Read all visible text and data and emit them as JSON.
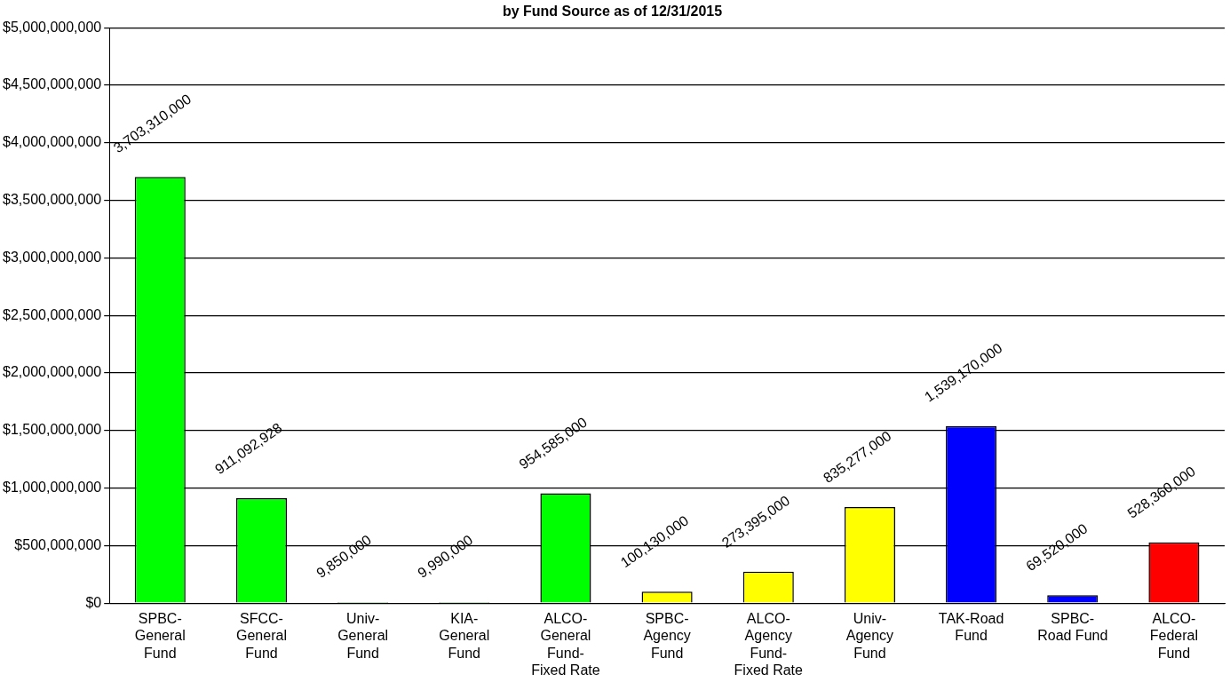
{
  "chart_data": {
    "type": "bar",
    "title": "by Fund Source as of 12/31/2015",
    "categories": [
      "SPBC-\nGeneral\nFund",
      "SFCC-\nGeneral\nFund",
      "Univ-\nGeneral\nFund",
      "KIA-\nGeneral\nFund",
      "ALCO-\nGeneral\nFund-\nFixed Rate",
      "SPBC-\nAgency\nFund",
      "ALCO-\nAgency\nFund-\nFixed Rate",
      "Univ-\nAgency\nFund",
      "TAK-Road\nFund",
      "SPBC-\nRoad Fund",
      "ALCO-\nFederal\nFund"
    ],
    "values": [
      3703310000,
      911092928,
      9850000,
      9990000,
      954585000,
      100130000,
      273395000,
      835277000,
      1539170000,
      69520000,
      528360000
    ],
    "colors": [
      "#00ff00",
      "#00ff00",
      "#00ff00",
      "#00ff00",
      "#00ff00",
      "#ffff00",
      "#ffff00",
      "#ffff00",
      "#0000ff",
      "#0000ff",
      "#ff0000"
    ],
    "ylim": [
      0,
      5000000000
    ],
    "yticks": [
      {
        "value": 0,
        "label": "$0"
      },
      {
        "value": 500000000,
        "label": "$500,000,000"
      },
      {
        "value": 1000000000,
        "label": "$1,000,000,000"
      },
      {
        "value": 1500000000,
        "label": "$1,500,000,000"
      },
      {
        "value": 2000000000,
        "label": "$2,000,000,000"
      },
      {
        "value": 2500000000,
        "label": "$2,500,000,000"
      },
      {
        "value": 3000000000,
        "label": "$3,000,000,000"
      },
      {
        "value": 3500000000,
        "label": "$3,500,000,000"
      },
      {
        "value": 4000000000,
        "label": "$4,000,000,000"
      },
      {
        "value": 4500000000,
        "label": "$4,500,000,000"
      },
      {
        "value": 5000000000,
        "label": "$5,000,000,000"
      }
    ],
    "value_labels": [
      "3,703,310,000",
      "911,092,928",
      "9,850,000",
      "9,990,000",
      "954,585,000",
      "100,130,000",
      "273,395,000",
      "835,277,000",
      "1,539,170,000",
      "69,520,000",
      "528,360,000"
    ],
    "grid": "y"
  }
}
